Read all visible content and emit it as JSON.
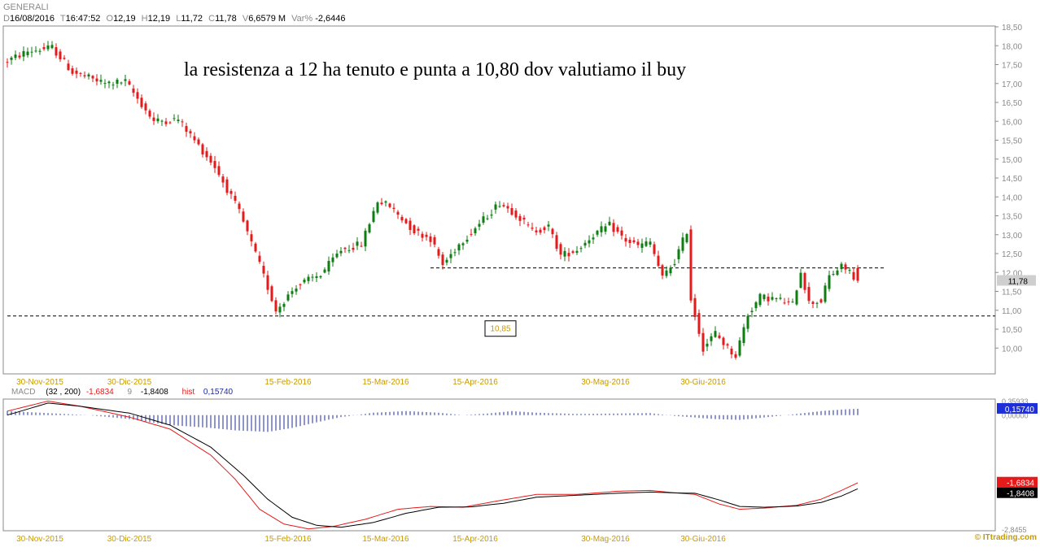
{
  "header": {
    "title": "GENERALI",
    "date": "16/08/2016",
    "time": "16:47:52",
    "open": "12,19",
    "high": "12,19",
    "low": "11,72",
    "close": "11,78",
    "volume": "6,6579 M",
    "var_pct": "-2,6446",
    "labels": {
      "D": "D",
      "T": "T",
      "O": "O",
      "H": "H",
      "L": "L",
      "C": "C",
      "V": "V",
      "Var": "Var%"
    }
  },
  "annotation": "la resistenza a 12 ha tenuto e punta a 10,80 dov valutiamo il buy",
  "watermark": "© ITtrading.com",
  "colors": {
    "up": "#0e7d12",
    "down": "#e51a1a",
    "macd_line": "#000000",
    "signal_line": "#e51a1a",
    "hist": "#1c2a9a",
    "frame": "#8a8a8a",
    "axis_text": "#8a8a8a",
    "price_marker_bg": "#cfcfcf",
    "hist_marker_bg": "#1f2fd8"
  },
  "chart_data": [
    {
      "type": "candlestick",
      "title": "GENERALI",
      "ylim": [
        9.5,
        18.5
      ],
      "yticks": [
        10.0,
        10.5,
        11.0,
        11.5,
        12.0,
        12.5,
        13.0,
        13.5,
        14.0,
        14.5,
        15.0,
        15.5,
        16.0,
        16.5,
        17.0,
        17.5,
        18.0,
        18.5
      ],
      "ytick_labels": [
        "10,00",
        "10,50",
        "11,00",
        "11,50",
        "12,00",
        "12,50",
        "13,00",
        "13,50",
        "14,00",
        "14,50",
        "15,00",
        "15,50",
        "16,00",
        "16,50",
        "17,00",
        "17,50",
        "18,00",
        "18,50"
      ],
      "xtick_labels": [
        "30-Nov-2015",
        "30-Dic-2015",
        "15-Feb-2016",
        "15-Mar-2016",
        "15-Apr-2016",
        "30-Mag-2016",
        "30-Giu-2016"
      ],
      "xtick_index": [
        8,
        30,
        69,
        93,
        115,
        147,
        171
      ],
      "last_price_label": "11,78",
      "last_price": 11.78,
      "levels": [
        {
          "value": 12.12,
          "style": "dashed",
          "from_index": 104,
          "to_index": 216
        },
        {
          "value": 10.85,
          "style": "dashed",
          "from_index": 0,
          "to_index": 244,
          "label": "10,85",
          "label_index": 121
        }
      ],
      "anchors": [
        [
          0,
          17.55
        ],
        [
          6,
          17.85
        ],
        [
          12,
          17.95
        ],
        [
          17,
          17.3
        ],
        [
          25,
          17.0
        ],
        [
          30,
          17.05
        ],
        [
          37,
          16.0
        ],
        [
          43,
          16.05
        ],
        [
          52,
          14.8
        ],
        [
          58,
          13.6
        ],
        [
          63,
          12.2
        ],
        [
          67,
          11.0
        ],
        [
          72,
          11.65
        ],
        [
          78,
          11.95
        ],
        [
          83,
          12.6
        ],
        [
          88,
          12.75
        ],
        [
          92,
          13.9
        ],
        [
          95,
          13.75
        ],
        [
          101,
          13.1
        ],
        [
          105,
          12.9
        ],
        [
          108,
          12.2
        ],
        [
          112,
          12.75
        ],
        [
          118,
          13.4
        ],
        [
          122,
          13.85
        ],
        [
          126,
          13.55
        ],
        [
          130,
          13.1
        ],
        [
          134,
          13.2
        ],
        [
          137,
          12.45
        ],
        [
          141,
          12.6
        ],
        [
          145,
          13.0
        ],
        [
          149,
          13.25
        ],
        [
          153,
          12.85
        ],
        [
          156,
          12.7
        ],
        [
          159,
          12.8
        ],
        [
          162,
          11.85
        ],
        [
          165,
          12.3
        ],
        [
          168,
          13.1
        ],
        [
          169,
          11.3
        ],
        [
          172,
          10.0
        ],
        [
          175,
          10.4
        ],
        [
          178,
          10.0
        ],
        [
          180,
          9.8
        ],
        [
          183,
          10.9
        ],
        [
          186,
          11.35
        ],
        [
          190,
          11.3
        ],
        [
          194,
          11.15
        ],
        [
          196,
          12.05
        ],
        [
          198,
          11.2
        ],
        [
          201,
          11.25
        ],
        [
          203,
          11.9
        ],
        [
          206,
          12.15
        ],
        [
          208,
          12.05
        ],
        [
          209,
          11.78
        ]
      ]
    },
    {
      "type": "line",
      "title": "MACD",
      "params": "(32 , 200)",
      "signal_period": "9",
      "ylim": [
        -2.8455,
        0.35933
      ],
      "ytick_labels": [
        "0,35933",
        "0,00000",
        "-2,8455"
      ],
      "series": [
        {
          "name": "MACD",
          "value_label": "-1,6834",
          "value": -1.6834,
          "anchors": [
            [
              0,
              0.1
            ],
            [
              10,
              0.35
            ],
            [
              18,
              0.22
            ],
            [
              30,
              -0.05
            ],
            [
              40,
              -0.35
            ],
            [
              50,
              -1.0
            ],
            [
              56,
              -1.6
            ],
            [
              62,
              -2.35
            ],
            [
              68,
              -2.72
            ],
            [
              74,
              -2.84
            ],
            [
              80,
              -2.78
            ],
            [
              88,
              -2.6
            ],
            [
              96,
              -2.35
            ],
            [
              104,
              -2.28
            ],
            [
              112,
              -2.3
            ],
            [
              120,
              -2.15
            ],
            [
              130,
              -1.98
            ],
            [
              140,
              -1.98
            ],
            [
              150,
              -1.9
            ],
            [
              158,
              -1.88
            ],
            [
              164,
              -1.94
            ],
            [
              169,
              -1.98
            ],
            [
              175,
              -2.22
            ],
            [
              180,
              -2.35
            ],
            [
              186,
              -2.32
            ],
            [
              194,
              -2.25
            ],
            [
              200,
              -2.1
            ],
            [
              205,
              -1.88
            ],
            [
              209,
              -1.69
            ]
          ]
        },
        {
          "name": "9",
          "value_label": "-1,8408",
          "value": -1.8408,
          "anchors": [
            [
              0,
              0.0
            ],
            [
              10,
              0.3
            ],
            [
              18,
              0.22
            ],
            [
              30,
              0.05
            ],
            [
              40,
              -0.25
            ],
            [
              50,
              -0.8
            ],
            [
              58,
              -1.5
            ],
            [
              64,
              -2.1
            ],
            [
              70,
              -2.55
            ],
            [
              76,
              -2.75
            ],
            [
              82,
              -2.8
            ],
            [
              90,
              -2.68
            ],
            [
              98,
              -2.45
            ],
            [
              106,
              -2.3
            ],
            [
              114,
              -2.29
            ],
            [
              122,
              -2.2
            ],
            [
              130,
              -2.05
            ],
            [
              140,
              -2.0
            ],
            [
              150,
              -1.95
            ],
            [
              158,
              -1.92
            ],
            [
              164,
              -1.94
            ],
            [
              169,
              -1.95
            ],
            [
              175,
              -2.12
            ],
            [
              180,
              -2.28
            ],
            [
              186,
              -2.3
            ],
            [
              194,
              -2.27
            ],
            [
              200,
              -2.18
            ],
            [
              205,
              -2.02
            ],
            [
              209,
              -1.84
            ]
          ]
        }
      ],
      "histogram": {
        "name": "hist",
        "value_label": "0,15740",
        "value": 0.1574,
        "anchors": [
          [
            0,
            0.1
          ],
          [
            10,
            0.05
          ],
          [
            20,
            0.0
          ],
          [
            30,
            -0.1
          ],
          [
            40,
            -0.25
          ],
          [
            50,
            -0.32
          ],
          [
            56,
            -0.38
          ],
          [
            64,
            -0.42
          ],
          [
            70,
            -0.32
          ],
          [
            76,
            -0.18
          ],
          [
            82,
            -0.05
          ],
          [
            90,
            0.06
          ],
          [
            98,
            0.1
          ],
          [
            106,
            0.06
          ],
          [
            112,
            0.0
          ],
          [
            118,
            0.04
          ],
          [
            124,
            0.1
          ],
          [
            130,
            0.06
          ],
          [
            140,
            0.03
          ],
          [
            150,
            0.04
          ],
          [
            158,
            0.05
          ],
          [
            164,
            -0.02
          ],
          [
            169,
            -0.06
          ],
          [
            174,
            -0.1
          ],
          [
            180,
            -0.12
          ],
          [
            186,
            -0.06
          ],
          [
            194,
            0.03
          ],
          [
            200,
            0.1
          ],
          [
            205,
            0.14
          ],
          [
            209,
            0.157
          ]
        ]
      }
    }
  ]
}
